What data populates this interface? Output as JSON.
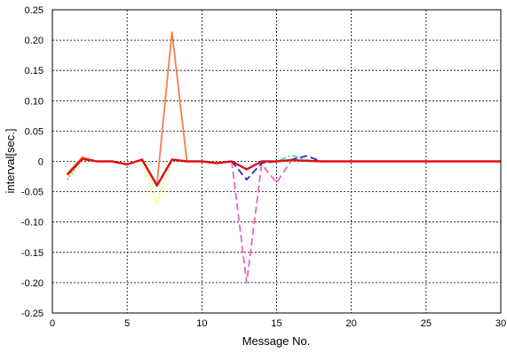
{
  "chart_data": {
    "type": "line",
    "title": "",
    "xlabel": "Message No.",
    "ylabel": "interval[sec.]",
    "xlim": [
      0,
      30
    ],
    "ylim": [
      -0.25,
      0.25
    ],
    "x_ticks": [
      0,
      5,
      10,
      15,
      20,
      25,
      30
    ],
    "x_tick_labels": [
      "0",
      "5",
      "10",
      "15",
      "20",
      "25",
      "30"
    ],
    "y_ticks": [
      0.25,
      0.2,
      0.15,
      0.1,
      0.05,
      0,
      -0.05,
      -0.1,
      -0.15,
      -0.2,
      -0.25
    ],
    "y_tick_labels": [
      "0.25",
      "0.20",
      "0.15",
      "0.10",
      "0.05",
      "0",
      "-0.05",
      "-0.10",
      "-0.15",
      "-0.20",
      "-0.25"
    ],
    "grid": true,
    "legend": "none",
    "x": [
      1,
      2,
      3,
      4,
      5,
      6,
      7,
      8,
      9,
      10,
      11,
      12,
      13,
      14,
      15,
      16,
      17,
      18,
      19,
      20,
      21,
      22,
      23,
      24,
      25,
      26,
      27,
      28,
      29,
      30
    ],
    "series": [
      {
        "color": "#66cc66",
        "dash": "dotted",
        "values": [
          -0.03,
          0.004,
          0,
          0,
          -0.005,
          0.003,
          -0.04,
          0.003,
          0,
          0,
          -0.003,
          0,
          -0.013,
          0,
          0,
          0.002,
          0.001,
          0,
          0,
          0,
          0,
          0,
          0,
          0,
          0,
          0,
          0,
          0,
          0,
          0
        ]
      },
      {
        "color": "#ffff44",
        "dash": "dotted",
        "values": [
          -0.025,
          0.003,
          0,
          0,
          -0.005,
          0.002,
          -0.07,
          0.003,
          0,
          0,
          -0.003,
          0,
          -0.013,
          0,
          0,
          0.002,
          0.001,
          0,
          0,
          0,
          0,
          0,
          0,
          0,
          0,
          0,
          0,
          0,
          0,
          0
        ]
      },
      {
        "color": "#33ddee",
        "dash": "dashdot",
        "values": [
          -0.022,
          0.004,
          0,
          0,
          -0.005,
          0.003,
          -0.038,
          0.003,
          0,
          0,
          -0.003,
          0,
          -0.013,
          0,
          0,
          0.01,
          0.002,
          0,
          0,
          0,
          0,
          0,
          0,
          0,
          0,
          0,
          0,
          0,
          0,
          0
        ]
      },
      {
        "color": "#ee66bb",
        "dash": "dashed",
        "values": [
          -0.022,
          0.004,
          0,
          0,
          -0.005,
          0.003,
          -0.04,
          0.003,
          0,
          0,
          -0.003,
          0,
          -0.2,
          -0.005,
          -0.035,
          0.002,
          0.001,
          0,
          0,
          0,
          0,
          0,
          0,
          0,
          0,
          0,
          0,
          0,
          0,
          0
        ]
      },
      {
        "color": "#2233cc",
        "dash": "dashed",
        "values": [
          -0.022,
          0.004,
          0,
          0,
          -0.005,
          0.003,
          -0.04,
          0.003,
          0,
          0,
          -0.003,
          0,
          -0.03,
          -0.003,
          0,
          0.003,
          0.009,
          0,
          0,
          0,
          0,
          0,
          0,
          0,
          0,
          0,
          0,
          0,
          0,
          0
        ]
      },
      {
        "color": "#f08050",
        "dash": "solid",
        "values": [
          -0.02,
          0.007,
          0,
          0,
          -0.005,
          0.003,
          -0.038,
          0.213,
          0,
          0,
          -0.003,
          0,
          -0.013,
          0,
          0,
          0.002,
          0.001,
          0,
          0,
          0,
          0,
          0,
          0,
          0,
          0,
          0,
          0,
          0,
          0,
          0
        ]
      },
      {
        "color": "#dd1111",
        "dash": "solid",
        "values": [
          -0.022,
          0.004,
          0,
          0,
          -0.005,
          0.003,
          -0.04,
          0.003,
          0,
          0,
          -0.003,
          0,
          -0.013,
          0,
          0,
          0.002,
          0.001,
          0,
          0,
          0,
          0,
          0,
          0,
          0,
          0,
          0,
          0,
          0,
          0,
          0
        ]
      }
    ]
  }
}
